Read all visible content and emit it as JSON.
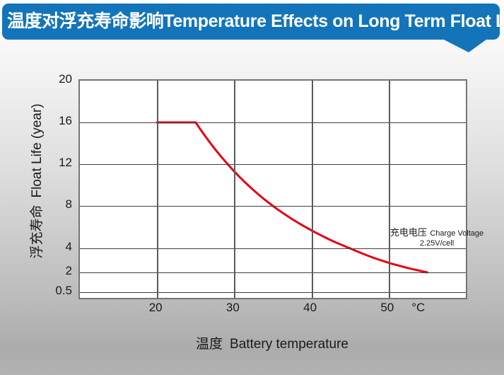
{
  "header": {
    "title_zh": "温度对浮充寿命影响",
    "title_en": "Temperature Effects on Long Term Float Life"
  },
  "colors": {
    "banner_blue": "#1374b9",
    "curve_red": "#e60012",
    "plot_background": "#ffffff",
    "gridline": "#3f3f3f"
  },
  "chart_data": {
    "type": "line",
    "title_zh": "温度对浮充寿命影响",
    "title_en": "Temperature Effects on Long Term Float Life",
    "xlabel_zh": "温度",
    "xlabel_en": "Battery temperature",
    "ylabel_zh": "浮充寿命",
    "ylabel_en": "Float Life (year)",
    "x_unit": "°C",
    "x_range": [
      10,
      60
    ],
    "x_ticks": [
      20,
      30,
      40,
      50
    ],
    "y_ticks": [
      0.5,
      2,
      4,
      8,
      12,
      16,
      20
    ],
    "grid": true,
    "legend": false,
    "series": [
      {
        "name": "float-life-vs-temperature",
        "color": "#e60012",
        "points": [
          [
            20,
            16
          ],
          [
            25,
            16
          ],
          [
            30,
            11.3
          ],
          [
            35,
            8
          ],
          [
            40,
            5.7
          ],
          [
            45,
            4
          ],
          [
            50,
            2.8
          ],
          [
            55,
            2
          ]
        ]
      }
    ],
    "annotation": {
      "zh": "充电电压",
      "en": "Charge Voltage",
      "line2": "2.25V/cell"
    }
  }
}
